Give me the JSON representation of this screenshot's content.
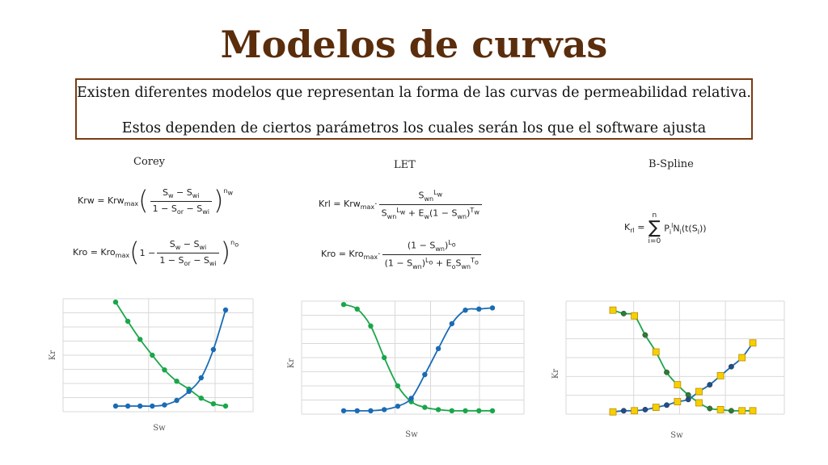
{
  "title": "Modelos de curvas",
  "box": {
    "line1": "Existen diferentes modelos que representan la forma de las curvas de permeabilidad relativa.",
    "line2": "Estos dependen de ciertos parámetros los cuales serán los que el software ajusta"
  },
  "models": {
    "corey": "Corey",
    "let": "LET",
    "bspline": "B-Spline"
  },
  "axes": {
    "xlabel": "Sw",
    "ylabel": "Kr"
  },
  "colors": {
    "title": "#5a2d0c",
    "border": "#7a3b12",
    "water": "#1a6bb5",
    "oil": "#1aa64a",
    "marker": "#f5d000"
  },
  "chart_data": [
    {
      "type": "line",
      "title": "Corey",
      "xlabel": "Sw",
      "ylabel": "Kr",
      "x": [
        0,
        1,
        2,
        3,
        4,
        5,
        6,
        7,
        8,
        9
      ],
      "series": [
        {
          "values": [
            0.97,
            0.8,
            0.64,
            0.5,
            0.37,
            0.27,
            0.2,
            0.12,
            0.07,
            0.05
          ]
        },
        {
          "values": [
            0.05,
            0.05,
            0.05,
            0.05,
            0.06,
            0.1,
            0.18,
            0.3,
            0.55,
            0.9
          ]
        }
      ],
      "ylim": [
        0,
        1
      ],
      "grid": true
    },
    {
      "type": "line",
      "title": "LET",
      "xlabel": "Sw",
      "ylabel": "Kr",
      "x": [
        0,
        1,
        2,
        3,
        4,
        5,
        6,
        7,
        8,
        9,
        10,
        11
      ],
      "series": [
        {
          "values": [
            0.97,
            0.93,
            0.78,
            0.5,
            0.25,
            0.11,
            0.06,
            0.04,
            0.03,
            0.03,
            0.03,
            0.03
          ]
        },
        {
          "values": [
            0.03,
            0.03,
            0.03,
            0.04,
            0.07,
            0.14,
            0.35,
            0.58,
            0.8,
            0.92,
            0.93,
            0.94
          ]
        }
      ],
      "ylim": [
        0,
        1
      ],
      "grid": true
    },
    {
      "type": "line",
      "title": "B-Spline",
      "xlabel": "Sw",
      "ylabel": "Kr",
      "x": [
        0,
        1,
        2,
        3,
        4,
        5,
        6,
        7,
        8,
        9,
        10,
        11,
        12,
        13
      ],
      "series": [
        {
          "values": [
            0.92,
            0.89,
            0.87,
            0.7,
            0.55,
            0.37,
            0.26,
            0.17,
            0.1,
            0.05,
            0.04,
            0.03,
            0.03,
            0.03
          ]
        },
        {
          "values": [
            0.02,
            0.03,
            0.03,
            0.04,
            0.06,
            0.08,
            0.11,
            0.13,
            0.2,
            0.26,
            0.34,
            0.42,
            0.5,
            0.63
          ]
        }
      ],
      "ylim": [
        0,
        1
      ],
      "grid": true
    }
  ]
}
